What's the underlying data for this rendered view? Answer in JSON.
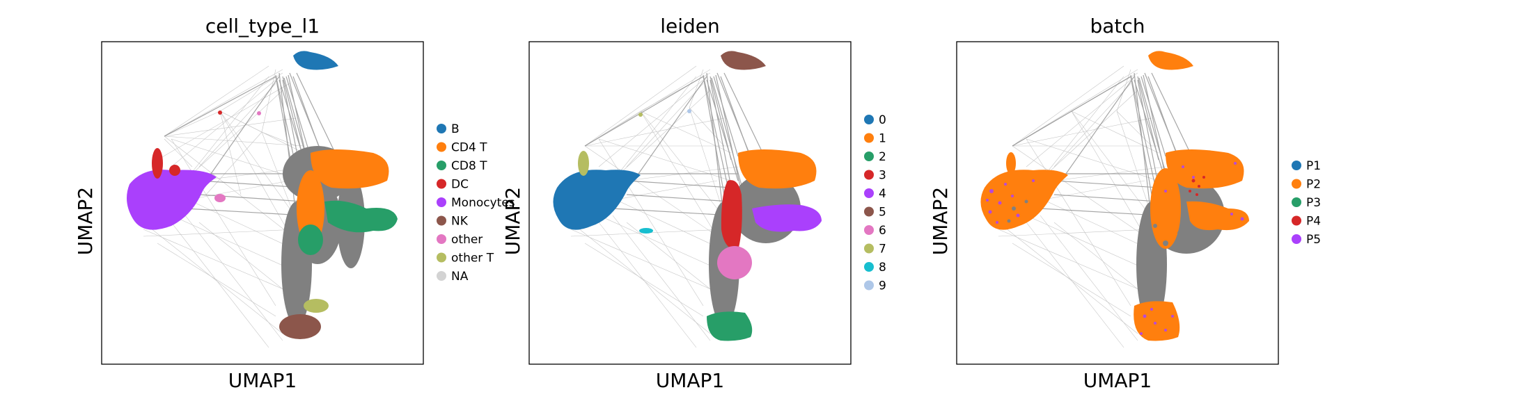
{
  "edge_color": "#808080",
  "chart_data": [
    {
      "type": "scatter",
      "title": "cell_type_l1",
      "xlabel": "UMAP1",
      "ylabel": "UMAP2",
      "legend_placement": "right",
      "grid": false,
      "legend": [
        {
          "label": "B",
          "color": "#1f77b4"
        },
        {
          "label": "CD4 T",
          "color": "#ff7f0e"
        },
        {
          "label": "CD8 T",
          "color": "#279e68"
        },
        {
          "label": "DC",
          "color": "#d62728"
        },
        {
          "label": "Monocytes",
          "color": "#aa40fc"
        },
        {
          "label": "NK",
          "color": "#8c564b"
        },
        {
          "label": "other",
          "color": "#e377c2"
        },
        {
          "label": "other T",
          "color": "#b5bd61"
        },
        {
          "label": "NA",
          "color": "#d3d3d3"
        }
      ]
    },
    {
      "type": "scatter",
      "title": "leiden",
      "xlabel": "UMAP1",
      "ylabel": "UMAP2",
      "legend_placement": "right",
      "grid": false,
      "legend": [
        {
          "label": "0",
          "color": "#1f77b4"
        },
        {
          "label": "1",
          "color": "#ff7f0e"
        },
        {
          "label": "2",
          "color": "#279e68"
        },
        {
          "label": "3",
          "color": "#d62728"
        },
        {
          "label": "4",
          "color": "#aa40fc"
        },
        {
          "label": "5",
          "color": "#8c564b"
        },
        {
          "label": "6",
          "color": "#e377c2"
        },
        {
          "label": "7",
          "color": "#b5bd61"
        },
        {
          "label": "8",
          "color": "#17becf"
        },
        {
          "label": "9",
          "color": "#aec7e8"
        }
      ]
    },
    {
      "type": "scatter",
      "title": "batch",
      "xlabel": "UMAP1",
      "ylabel": "UMAP2",
      "legend_placement": "right",
      "grid": false,
      "legend": [
        {
          "label": "P1",
          "color": "#1f77b4"
        },
        {
          "label": "P2",
          "color": "#ff7f0e"
        },
        {
          "label": "P3",
          "color": "#279e68"
        },
        {
          "label": "P4",
          "color": "#d62728"
        },
        {
          "label": "P5",
          "color": "#aa40fc"
        }
      ]
    }
  ]
}
